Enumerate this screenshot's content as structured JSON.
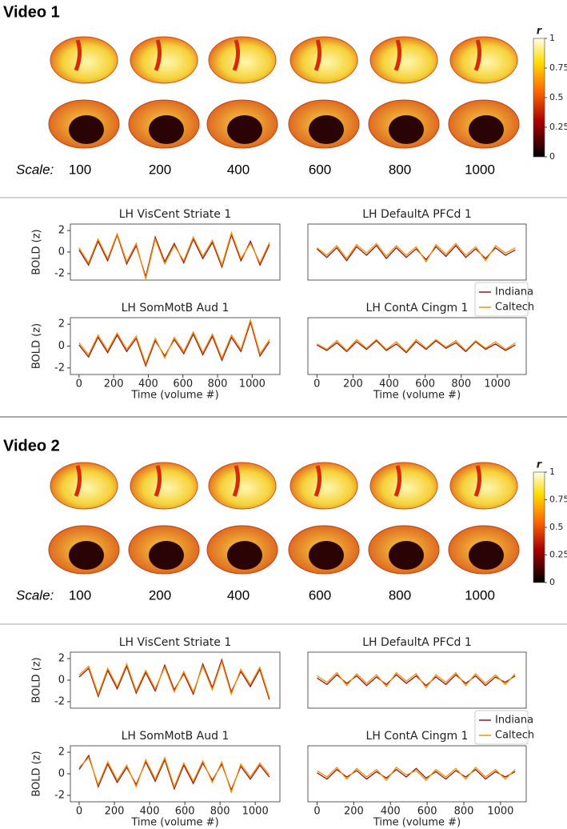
{
  "sections": [
    {
      "title": "Video 1",
      "scale_label": "Scale:",
      "scales": [
        100,
        200,
        400,
        600,
        800,
        1000
      ],
      "colorbar": {
        "label": "r",
        "ticks": [
          0,
          0.25,
          0.5,
          0.75,
          1
        ]
      }
    },
    {
      "title": "Video 2",
      "scale_label": "Scale:",
      "scales": [
        100,
        200,
        400,
        600,
        800,
        1000
      ],
      "colorbar": {
        "label": "r",
        "ticks": [
          0,
          0.25,
          0.5,
          0.75,
          1
        ]
      }
    }
  ],
  "chart_data": [
    {
      "type": "line",
      "title": "LH VisCent Striate 1",
      "ylabel": "BOLD (z)",
      "xlim": [
        -50,
        1160
      ],
      "ylim": [
        -2.6,
        2.6
      ],
      "yticks": [
        -2,
        0,
        2
      ],
      "x": [
        0,
        55,
        110,
        165,
        220,
        275,
        330,
        385,
        440,
        495,
        550,
        605,
        660,
        715,
        770,
        825,
        880,
        935,
        990,
        1045,
        1100
      ],
      "series": [
        {
          "name": "Indiana",
          "color": "#8b1a1a",
          "values": [
            0.2,
            -1.2,
            1.0,
            -0.8,
            1.6,
            -1.1,
            0.6,
            -2.3,
            1.4,
            -0.9,
            0.8,
            -1.0,
            1.2,
            -0.6,
            0.9,
            -1.4,
            1.6,
            -0.8,
            1.0,
            -1.2,
            0.7
          ]
        },
        {
          "name": "Caltech",
          "color": "#ff8c00",
          "values": [
            0.4,
            -1.0,
            1.2,
            -0.6,
            1.7,
            -0.9,
            0.8,
            -2.5,
            1.2,
            -1.1,
            0.6,
            -0.8,
            1.4,
            -0.4,
            1.1,
            -1.2,
            1.8,
            -0.6,
            0.8,
            -1.0,
            0.9
          ]
        }
      ]
    },
    {
      "type": "line",
      "title": "LH DefaultA PFCd 1",
      "xlim": [
        -50,
        1160
      ],
      "ylim": [
        -2.6,
        2.6
      ],
      "legend": "lower right",
      "x": [
        0,
        55,
        110,
        165,
        220,
        275,
        330,
        385,
        440,
        495,
        550,
        605,
        660,
        715,
        770,
        825,
        880,
        935,
        990,
        1045,
        1100
      ],
      "series": [
        {
          "name": "Indiana",
          "color": "#8b1a1a",
          "values": [
            0.3,
            -0.5,
            0.4,
            -0.8,
            0.5,
            -0.3,
            0.6,
            -0.6,
            0.4,
            -0.5,
            0.3,
            -0.7,
            0.5,
            -0.4,
            0.6,
            -0.5,
            0.3,
            -0.6,
            0.4,
            -0.3,
            0.2
          ]
        },
        {
          "name": "Caltech",
          "color": "#ff8c00",
          "values": [
            0.4,
            -0.3,
            0.6,
            -0.6,
            0.7,
            -0.1,
            0.8,
            -0.4,
            0.6,
            -0.3,
            0.5,
            -0.9,
            0.7,
            -0.2,
            0.8,
            -0.3,
            0.5,
            -0.8,
            0.6,
            -0.1,
            0.4
          ]
        }
      ]
    },
    {
      "type": "line",
      "title": "LH SomMotB Aud 1",
      "ylabel": "BOLD (z)",
      "xlabel": "Time (volume #)",
      "xlim": [
        -50,
        1160
      ],
      "ylim": [
        -2.6,
        2.6
      ],
      "yticks": [
        -2,
        0,
        2
      ],
      "xticks": [
        0,
        200,
        400,
        600,
        800,
        1000
      ],
      "x": [
        0,
        55,
        110,
        165,
        220,
        275,
        330,
        385,
        440,
        495,
        550,
        605,
        660,
        715,
        770,
        825,
        880,
        935,
        990,
        1045,
        1100
      ],
      "series": [
        {
          "name": "Indiana",
          "color": "#8b1a1a",
          "values": [
            0.1,
            -1.0,
            0.8,
            -0.6,
            1.0,
            -0.5,
            0.7,
            -1.8,
            0.5,
            -0.9,
            0.6,
            -0.7,
            1.1,
            -0.8,
            0.9,
            -1.3,
            0.8,
            -0.5,
            2.2,
            -0.9,
            0.4
          ]
        },
        {
          "name": "Caltech",
          "color": "#ff8c00",
          "values": [
            0.3,
            -0.8,
            1.0,
            -0.4,
            1.2,
            -0.3,
            0.9,
            -1.6,
            0.7,
            -1.1,
            0.8,
            -0.5,
            1.3,
            -0.6,
            1.1,
            -1.1,
            1.0,
            -0.3,
            2.4,
            -0.7,
            0.6
          ]
        }
      ]
    },
    {
      "type": "line",
      "title": "LH ContA Cingm 1",
      "xlabel": "Time (volume #)",
      "xlim": [
        -50,
        1160
      ],
      "ylim": [
        -2.6,
        2.6
      ],
      "xticks": [
        0,
        200,
        400,
        600,
        800,
        1000
      ],
      "x": [
        0,
        55,
        110,
        165,
        220,
        275,
        330,
        385,
        440,
        495,
        550,
        605,
        660,
        715,
        770,
        825,
        880,
        935,
        990,
        1045,
        1100
      ],
      "series": [
        {
          "name": "Indiana",
          "color": "#8b1a1a",
          "values": [
            0.1,
            -0.4,
            0.3,
            -0.5,
            0.4,
            -0.3,
            0.5,
            -0.4,
            0.2,
            -0.6,
            0.4,
            -0.3,
            0.5,
            -0.2,
            0.3,
            -0.5,
            0.4,
            -0.3,
            0.2,
            -0.4,
            0.1
          ]
        },
        {
          "name": "Caltech",
          "color": "#ff8c00",
          "values": [
            0.2,
            -0.3,
            0.5,
            -0.4,
            0.6,
            -0.2,
            0.6,
            -0.3,
            0.4,
            -0.5,
            0.6,
            -0.2,
            0.6,
            -0.1,
            0.5,
            -0.4,
            0.5,
            -0.2,
            0.4,
            -0.3,
            0.3
          ]
        }
      ]
    },
    {
      "type": "line",
      "title": "LH VisCent Striate 1",
      "ylabel": "BOLD (z)",
      "xlim": [
        -50,
        1140
      ],
      "ylim": [
        -2.6,
        2.6
      ],
      "yticks": [
        -2,
        0,
        2
      ],
      "x": [
        0,
        54,
        108,
        162,
        216,
        270,
        324,
        378,
        432,
        486,
        540,
        594,
        648,
        702,
        756,
        810,
        864,
        918,
        972,
        1026,
        1080
      ],
      "series": [
        {
          "name": "Indiana",
          "color": "#8b1a1a",
          "values": [
            0.3,
            1.1,
            -1.5,
            0.9,
            -0.8,
            1.3,
            -1.2,
            0.7,
            -1.0,
            1.4,
            -0.9,
            0.6,
            -1.3,
            1.5,
            -0.7,
            1.9,
            -1.1,
            0.8,
            -0.6,
            1.0,
            -1.8
          ]
        },
        {
          "name": "Caltech",
          "color": "#ff8c00",
          "values": [
            0.5,
            1.3,
            -1.3,
            1.1,
            -0.6,
            1.5,
            -1.0,
            0.9,
            -0.8,
            1.2,
            -1.1,
            0.8,
            -1.1,
            1.3,
            -0.9,
            1.7,
            -1.3,
            1.0,
            -0.4,
            1.2,
            -1.6
          ]
        }
      ]
    },
    {
      "type": "line",
      "title": "LH DefaultA PFCd 1",
      "xlim": [
        -50,
        1140
      ],
      "ylim": [
        -2.6,
        2.6
      ],
      "legend": "lower right",
      "x": [
        0,
        54,
        108,
        162,
        216,
        270,
        324,
        378,
        432,
        486,
        540,
        594,
        648,
        702,
        756,
        810,
        864,
        918,
        972,
        1026,
        1080
      ],
      "series": [
        {
          "name": "Indiana",
          "color": "#8b1a1a",
          "values": [
            0.2,
            -0.4,
            0.5,
            -0.3,
            0.4,
            -0.5,
            0.3,
            -0.4,
            0.5,
            -0.3,
            0.4,
            -0.5,
            0.3,
            -0.4,
            0.5,
            -0.3,
            0.4,
            -0.5,
            0.3,
            -0.2,
            0.4
          ]
        },
        {
          "name": "Caltech",
          "color": "#ff8c00",
          "values": [
            0.4,
            -0.2,
            0.7,
            -0.5,
            0.6,
            -0.3,
            0.5,
            -0.6,
            0.7,
            -0.1,
            0.6,
            -0.7,
            0.5,
            -0.2,
            0.7,
            -0.5,
            0.6,
            -0.3,
            0.5,
            -0.4,
            0.6
          ]
        }
      ]
    },
    {
      "type": "line",
      "title": "LH SomMotB Aud 1",
      "ylabel": "BOLD (z)",
      "xlabel": "Time (volume #)",
      "xlim": [
        -50,
        1140
      ],
      "ylim": [
        -2.6,
        2.6
      ],
      "yticks": [
        -2,
        0,
        2
      ],
      "xticks": [
        0,
        200,
        400,
        600,
        800,
        1000
      ],
      "x": [
        0,
        54,
        108,
        162,
        216,
        270,
        324,
        378,
        432,
        486,
        540,
        594,
        648,
        702,
        756,
        810,
        864,
        918,
        972,
        1026,
        1080
      ],
      "series": [
        {
          "name": "Indiana",
          "color": "#8b1a1a",
          "values": [
            0.4,
            1.7,
            -1.2,
            0.9,
            -0.8,
            0.6,
            -1.0,
            1.1,
            -0.7,
            1.3,
            -1.4,
            0.8,
            -0.9,
            1.0,
            -0.6,
            0.9,
            -1.5,
            0.7,
            -0.5,
            0.8,
            -0.3
          ]
        },
        {
          "name": "Caltech",
          "color": "#ff8c00",
          "values": [
            0.6,
            1.5,
            -1.0,
            1.1,
            -0.6,
            0.8,
            -1.2,
            1.3,
            -0.5,
            1.5,
            -1.2,
            1.0,
            -0.7,
            1.2,
            -0.8,
            1.1,
            -1.7,
            0.9,
            -0.3,
            1.0,
            -0.1
          ]
        }
      ]
    },
    {
      "type": "line",
      "title": "LH ContA Cingm 1",
      "xlabel": "Time (volume #)",
      "xlim": [
        -50,
        1140
      ],
      "ylim": [
        -2.6,
        2.6
      ],
      "xticks": [
        0,
        200,
        400,
        600,
        800,
        1000
      ],
      "x": [
        0,
        54,
        108,
        162,
        216,
        270,
        324,
        378,
        432,
        486,
        540,
        594,
        648,
        702,
        756,
        810,
        864,
        918,
        972,
        1026,
        1080
      ],
      "series": [
        {
          "name": "Indiana",
          "color": "#8b1a1a",
          "values": [
            0.1,
            -0.5,
            0.4,
            -0.3,
            0.3,
            -0.5,
            0.2,
            -0.4,
            0.4,
            -0.3,
            0.5,
            -0.4,
            0.2,
            -0.5,
            0.3,
            -0.3,
            0.4,
            -0.5,
            0.2,
            -0.3,
            0.2
          ]
        },
        {
          "name": "Caltech",
          "color": "#ff8c00",
          "values": [
            0.3,
            -0.3,
            0.6,
            -0.5,
            0.5,
            -0.3,
            0.4,
            -0.6,
            0.6,
            -0.1,
            0.3,
            -0.6,
            0.4,
            -0.3,
            0.5,
            -0.5,
            0.6,
            -0.3,
            0.4,
            -0.5,
            0.4
          ]
        }
      ]
    }
  ]
}
